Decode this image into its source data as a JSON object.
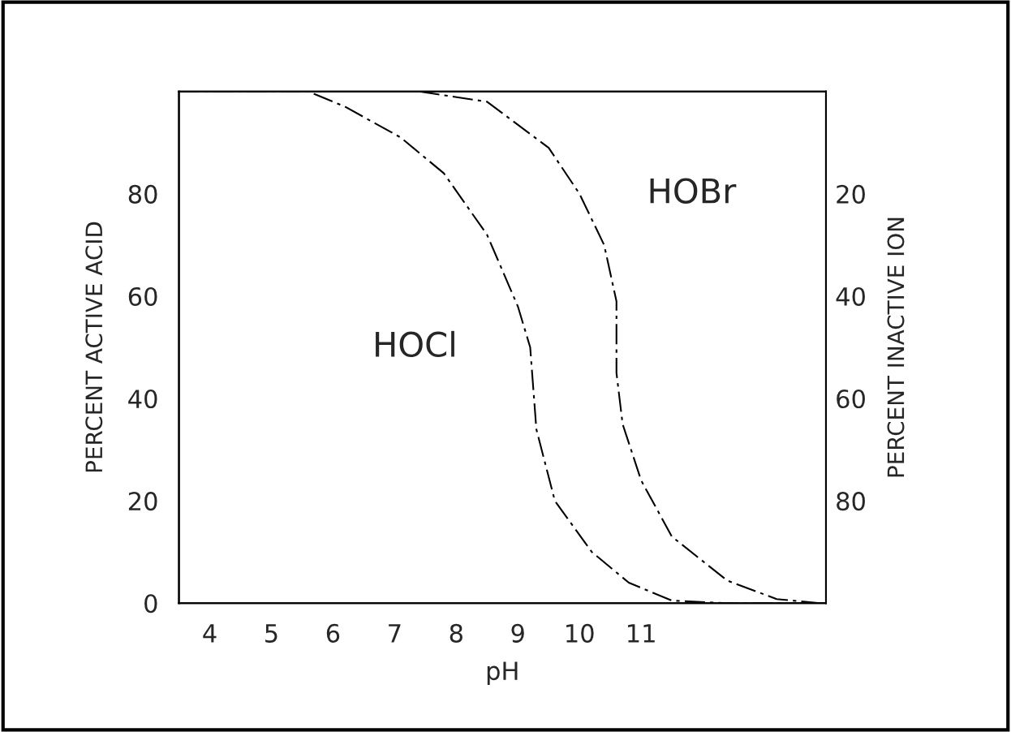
{
  "chart_data": {
    "type": "line",
    "xlabel": "pH",
    "ylabel": "PERCENT ACTIVE ACID",
    "y2label": "PERCENT INACTIVE ION",
    "xlim": [
      3.5,
      14.0
    ],
    "xticks": [
      4,
      5,
      6,
      7,
      8,
      9,
      10,
      11
    ],
    "ylim": [
      0,
      100
    ],
    "yticks": [
      0,
      20,
      40,
      60,
      80
    ],
    "y2lim": [
      100,
      0
    ],
    "y2ticks": [
      20,
      40,
      60,
      80
    ],
    "line_style": "dashed",
    "grid": false,
    "legend": false,
    "series": [
      {
        "name": "HOCl",
        "color": "#000000",
        "x": [
          3.5,
          5.6,
          6.2,
          7.1,
          7.8,
          8.5,
          9.0,
          9.2,
          9.3,
          9.6,
          10.2,
          10.8,
          11.5,
          12.4,
          14.0
        ],
        "values": [
          100,
          100,
          97,
          91,
          84,
          72,
          58,
          50,
          34,
          20,
          10,
          4,
          0.5,
          0,
          0
        ]
      },
      {
        "name": "HOBr",
        "color": "#000000",
        "x": [
          7.4,
          8.5,
          9.5,
          10.0,
          10.4,
          10.6,
          10.6,
          10.7,
          11.0,
          11.5,
          12.4,
          13.2,
          13.9
        ],
        "values": [
          100,
          98,
          89,
          80,
          70,
          59,
          45,
          35,
          24,
          13,
          4.4,
          0.8,
          0
        ]
      }
    ]
  }
}
